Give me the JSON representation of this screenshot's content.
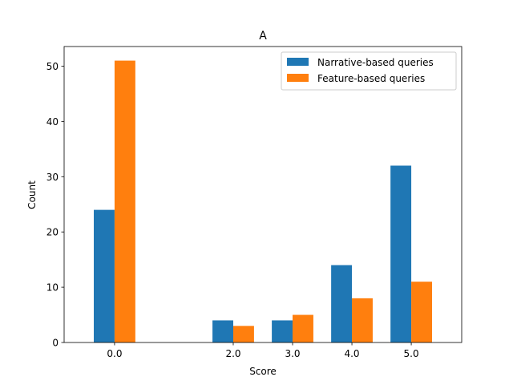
{
  "chart_data": {
    "type": "bar",
    "title": "A",
    "xlabel": "Score",
    "ylabel": "Count",
    "x": [
      0.0,
      2.0,
      3.0,
      4.0,
      5.0
    ],
    "x_tick_labels": [
      "0.0",
      "2.0",
      "3.0",
      "4.0",
      "5.0"
    ],
    "y_ticks": [
      0,
      10,
      20,
      30,
      40,
      50
    ],
    "xlim": [
      -0.85,
      5.85
    ],
    "ylim": [
      0,
      53.55
    ],
    "grid": false,
    "legend_position": "top-right",
    "series": [
      {
        "name": "Narrative-based queries",
        "color": "#1f77b4",
        "values": [
          24,
          4,
          4,
          14,
          32
        ]
      },
      {
        "name": "Feature-based queries",
        "color": "#ff7f0e",
        "values": [
          51,
          3,
          5,
          8,
          11
        ]
      }
    ]
  }
}
